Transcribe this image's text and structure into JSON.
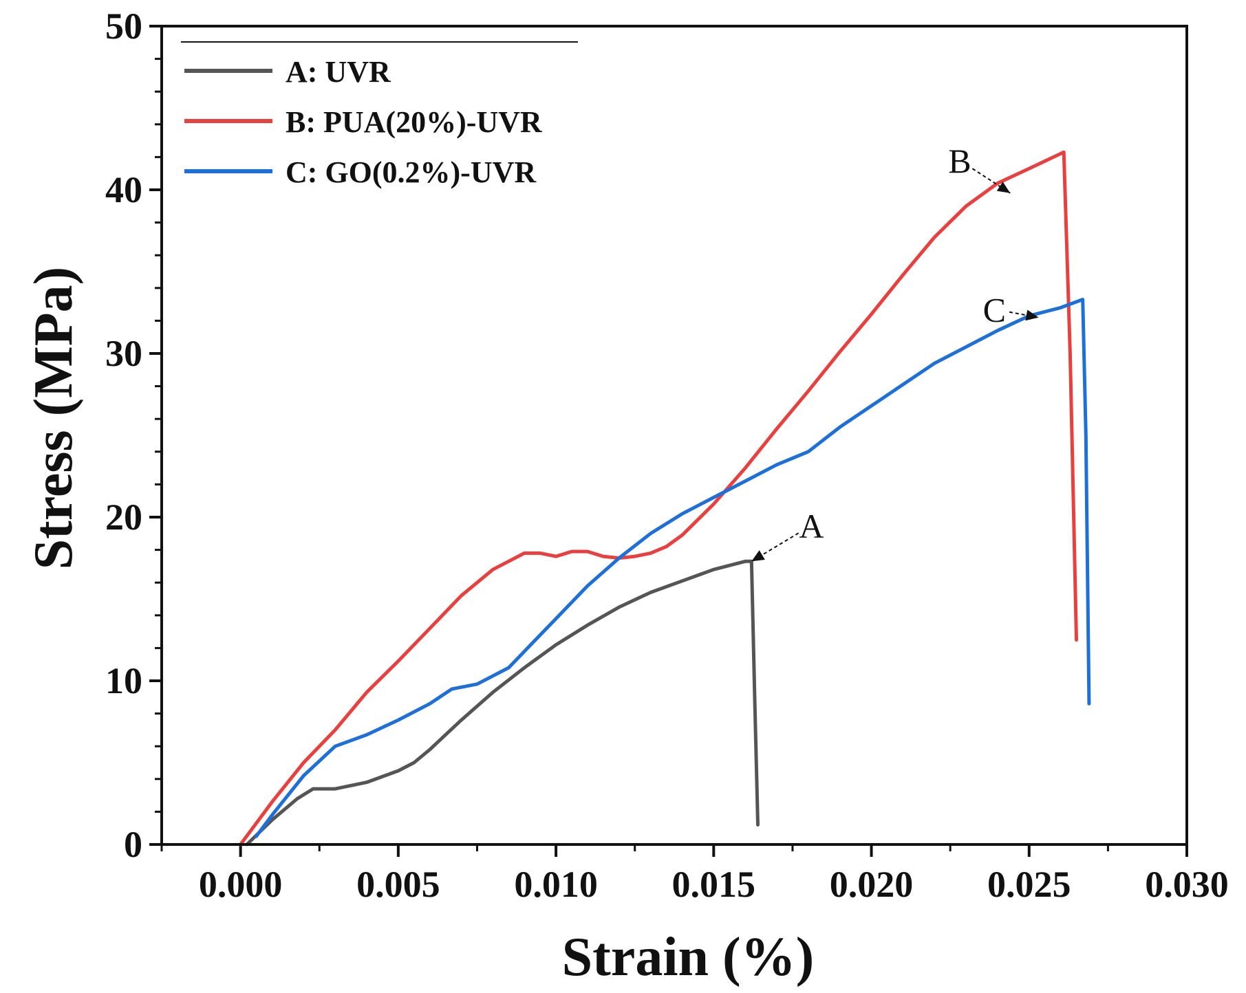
{
  "chart_data": {
    "type": "line",
    "title": "",
    "xlabel": "Strain (%)",
    "ylabel": "Stress (MPa)",
    "xlim": [
      -0.0025,
      0.03
    ],
    "ylim": [
      0,
      50
    ],
    "xticks": [
      0.0,
      0.005,
      0.01,
      0.015,
      0.02,
      0.025,
      0.03
    ],
    "xtick_labels": [
      "0.000",
      "0.005",
      "0.010",
      "0.015",
      "0.020",
      "0.025",
      "0.030"
    ],
    "yticks": [
      0,
      10,
      20,
      30,
      40,
      50
    ],
    "ytick_labels": [
      "0",
      "10",
      "20",
      "30",
      "40",
      "50"
    ],
    "grid": false,
    "legend": "top-left",
    "series": [
      {
        "name": "A: UVR",
        "color": "#555555",
        "x": [
          0.0002,
          0.001,
          0.0018,
          0.0023,
          0.003,
          0.004,
          0.005,
          0.0055,
          0.006,
          0.007,
          0.008,
          0.009,
          0.01,
          0.011,
          0.012,
          0.013,
          0.014,
          0.015,
          0.016,
          0.0162,
          0.0163,
          0.0164
        ],
        "y": [
          0.0,
          1.5,
          2.8,
          3.4,
          3.4,
          3.8,
          4.5,
          5.0,
          5.8,
          7.6,
          9.3,
          10.8,
          12.2,
          13.4,
          14.5,
          15.4,
          16.1,
          16.8,
          17.3,
          17.3,
          9.0,
          1.2
        ]
      },
      {
        "name": "B: PUA(20%)-UVR",
        "color": "#e8403f",
        "x": [
          0.0,
          0.001,
          0.002,
          0.003,
          0.004,
          0.005,
          0.006,
          0.007,
          0.008,
          0.009,
          0.0095,
          0.01,
          0.0105,
          0.011,
          0.0115,
          0.012,
          0.0125,
          0.013,
          0.0135,
          0.014,
          0.015,
          0.016,
          0.017,
          0.018,
          0.019,
          0.02,
          0.021,
          0.022,
          0.023,
          0.024,
          0.025,
          0.0261,
          0.0263,
          0.0265
        ],
        "y": [
          0.0,
          2.6,
          5.0,
          7.0,
          9.3,
          11.2,
          13.2,
          15.2,
          16.8,
          17.8,
          17.8,
          17.6,
          17.9,
          17.9,
          17.6,
          17.5,
          17.6,
          17.8,
          18.2,
          18.9,
          20.8,
          23.0,
          25.4,
          27.7,
          30.1,
          32.4,
          34.8,
          37.1,
          39.0,
          40.4,
          41.3,
          42.3,
          30.0,
          12.5
        ]
      },
      {
        "name": "C: GO(0.2%)-UVR",
        "color": "#1f6fd8",
        "x": [
          0.0005,
          0.001,
          0.002,
          0.003,
          0.004,
          0.005,
          0.006,
          0.0067,
          0.0075,
          0.0085,
          0.009,
          0.01,
          0.011,
          0.012,
          0.013,
          0.014,
          0.015,
          0.016,
          0.017,
          0.018,
          0.019,
          0.02,
          0.021,
          0.022,
          0.023,
          0.024,
          0.025,
          0.026,
          0.0267,
          0.0268,
          0.0269
        ],
        "y": [
          0.5,
          1.8,
          4.2,
          6.0,
          6.7,
          7.6,
          8.6,
          9.5,
          9.8,
          10.8,
          11.8,
          13.8,
          15.8,
          17.5,
          19.0,
          20.2,
          21.2,
          22.2,
          23.2,
          24.0,
          25.5,
          26.8,
          28.1,
          29.4,
          30.4,
          31.4,
          32.3,
          32.8,
          33.3,
          25.0,
          8.6
        ]
      }
    ],
    "annotations": [
      {
        "text": "A",
        "point": [
          0.0162,
          17.3
        ],
        "label_at": [
          0.0181,
          19.5
        ]
      },
      {
        "text": "B",
        "point": [
          0.0244,
          39.8
        ],
        "label_at": [
          0.0228,
          41.8
        ]
      },
      {
        "text": "C",
        "point": [
          0.0253,
          32.2
        ],
        "label_at": [
          0.0239,
          32.7
        ]
      }
    ]
  }
}
